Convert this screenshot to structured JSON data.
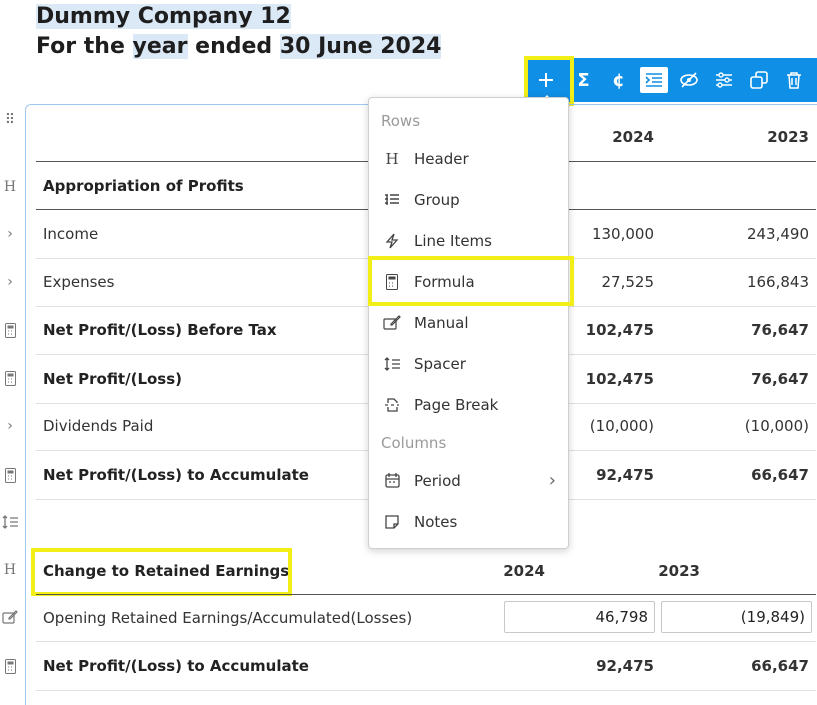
{
  "report": {
    "company": "Dummy Company 12",
    "period_prefix": "For the",
    "period_word_year": "year",
    "period_word_ended": "ended",
    "period_date": "30 June 2024"
  },
  "toolbar": {
    "items": [
      "add-icon",
      "sigma-icon",
      "currency-icon",
      "indent-icon",
      "hide-icon",
      "settings-sliders-icon",
      "duplicate-icon",
      "delete-icon"
    ]
  },
  "table1": {
    "columns": [
      "2024",
      "2023"
    ],
    "rows": [
      {
        "label": "Appropriation of Profits",
        "c2024": "",
        "c2023": ""
      },
      {
        "label": "Income",
        "c2024": "130,000",
        "c2023": "243,490"
      },
      {
        "label": "Expenses",
        "c2024": "27,525",
        "c2023": "166,843"
      },
      {
        "label": "Net Profit/(Loss) Before Tax",
        "c2024": "102,475",
        "c2023": "76,647"
      },
      {
        "label": "Net Profit/(Loss)",
        "c2024": "102,475",
        "c2023": "76,647"
      },
      {
        "label": "Dividends Paid",
        "c2024": "(10,000)",
        "c2023": "(10,000)"
      },
      {
        "label": "Net Profit/(Loss) to Accumulate",
        "c2024": "92,475",
        "c2023": "66,647"
      }
    ]
  },
  "table2": {
    "title": "Change to Retained Earnings",
    "columns": [
      "2024",
      "2023"
    ],
    "rows": [
      {
        "label": "Opening Retained Earnings/Accumulated(Losses)",
        "c2024": "46,798",
        "c2023": "(19,849)"
      },
      {
        "label": "Net Profit/(Loss) to Accumulate",
        "c2024": "92,475",
        "c2023": "66,647"
      }
    ]
  },
  "menu": {
    "rows_heading": "Rows",
    "columns_heading": "Columns",
    "items": [
      "Header",
      "Group",
      "Line Items",
      "Formula",
      "Manual",
      "Spacer",
      "Page Break"
    ],
    "column_items": [
      "Period",
      "Notes"
    ]
  },
  "colors": {
    "toolbar": "#0f8fe6",
    "highlight": "#f2ee18",
    "title_bg": "#dbe8f6"
  }
}
